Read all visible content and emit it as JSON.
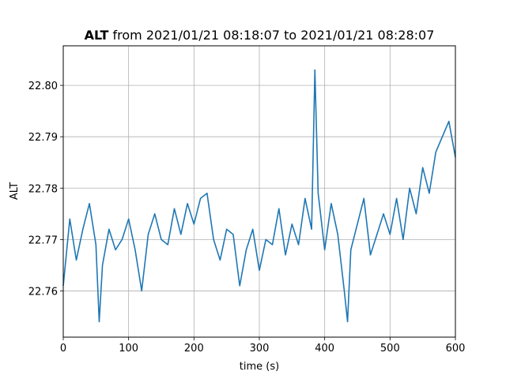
{
  "chart_data": {
    "type": "line",
    "title_bold": "ALT",
    "title_rest": " from 2021/01/21 08:18:07 to 2021/01/21 08:28:07",
    "xlabel": "time (s)",
    "ylabel": "ALT",
    "xlim": [
      0,
      600
    ],
    "ylim": [
      22.751,
      22.8077
    ],
    "grid": true,
    "x_ticks": [
      0,
      100,
      200,
      300,
      400,
      500,
      600
    ],
    "y_ticks": [
      22.76,
      22.77,
      22.78,
      22.79,
      22.8
    ],
    "x_tick_labels": [
      "0",
      "100",
      "200",
      "300",
      "400",
      "500",
      "600"
    ],
    "y_tick_labels": [
      "22.76",
      "22.77",
      "22.78",
      "22.79",
      "22.80"
    ],
    "series_color": "#1f77b4",
    "series": [
      {
        "x": [
          0,
          10,
          20,
          30,
          40,
          50,
          55,
          60,
          70,
          80,
          90,
          100,
          110,
          120,
          130,
          140,
          150,
          160,
          170,
          180,
          190,
          200,
          210,
          220,
          230,
          240,
          250,
          260,
          270,
          280,
          290,
          300,
          310,
          320,
          330,
          340,
          350,
          360,
          370,
          380,
          385,
          390,
          400,
          410,
          420,
          430,
          435,
          440,
          450,
          460,
          470,
          480,
          490,
          500,
          510,
          520,
          530,
          540,
          550,
          560,
          570,
          580,
          590,
          600
        ],
        "y": [
          22.761,
          22.774,
          22.766,
          22.772,
          22.777,
          22.769,
          22.754,
          22.765,
          22.772,
          22.768,
          22.77,
          22.774,
          22.768,
          22.76,
          22.771,
          22.775,
          22.77,
          22.769,
          22.776,
          22.771,
          22.777,
          22.773,
          22.778,
          22.779,
          22.77,
          22.766,
          22.772,
          22.771,
          22.761,
          22.768,
          22.772,
          22.764,
          22.77,
          22.769,
          22.776,
          22.767,
          22.773,
          22.769,
          22.778,
          22.772,
          22.803,
          22.779,
          22.768,
          22.777,
          22.771,
          22.76,
          22.754,
          22.768,
          22.773,
          22.778,
          22.767,
          22.771,
          22.775,
          22.771,
          22.778,
          22.77,
          22.78,
          22.775,
          22.784,
          22.779,
          22.787,
          22.79,
          22.793,
          22.786
        ]
      }
    ]
  }
}
